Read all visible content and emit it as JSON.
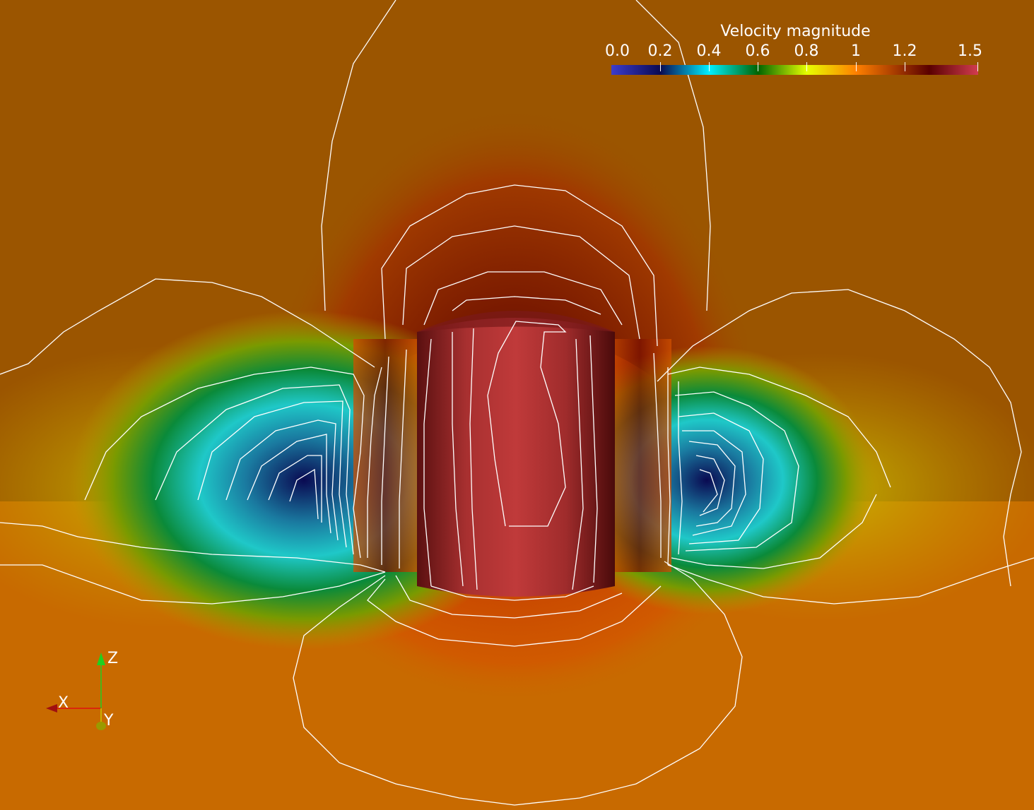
{
  "legend": {
    "title": "Velocity magnitude",
    "ticks": [
      "0.0",
      "0.2",
      "0.4",
      "0.6",
      "0.8",
      "1",
      "1.2",
      "1.5"
    ],
    "range": [
      0.0,
      1.5
    ],
    "colormap": [
      {
        "value": 0.0,
        "color": "#3c3ccc"
      },
      {
        "value": 0.2,
        "color": "#0a0a52"
      },
      {
        "value": 0.4,
        "color": "#00f0ff"
      },
      {
        "value": 0.6,
        "color": "#006400"
      },
      {
        "value": 0.8,
        "color": "#e6ff00"
      },
      {
        "value": 1.0,
        "color": "#ff8000"
      },
      {
        "value": 1.3,
        "color": "#5a0000"
      },
      {
        "value": 1.5,
        "color": "#d23c50"
      }
    ]
  },
  "orientation_axes": {
    "x_label": "X",
    "y_label": "Y",
    "z_label": "Z",
    "x_color": "#e01010",
    "y_color": "#c8c800",
    "z_color": "#20d020"
  },
  "scene": {
    "background_top": "#9b5500",
    "background_bottom": "#c86a00",
    "body_color": "#b83a3a",
    "contour_color": "#ffffff"
  }
}
